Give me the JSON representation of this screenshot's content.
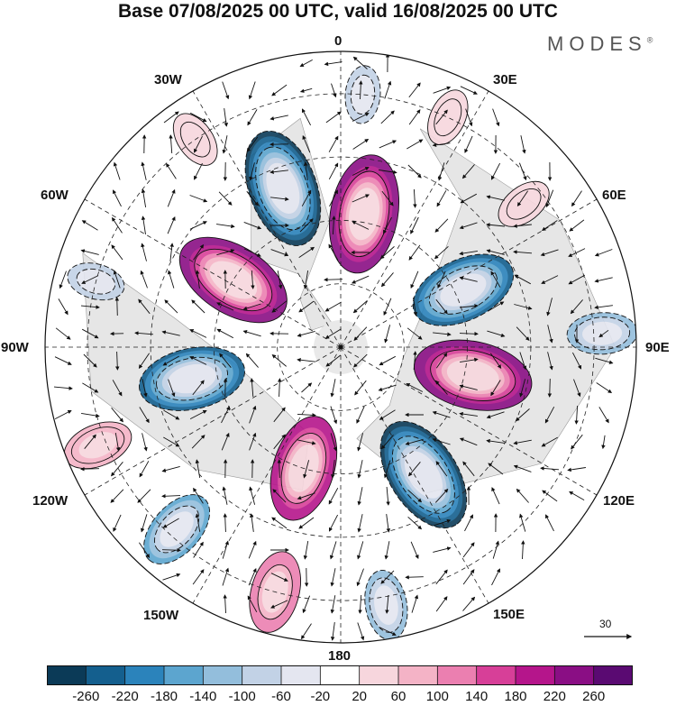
{
  "title": "Base 07/08/2025 00 UTC, valid 16/08/2025 00 UTC",
  "brand": "MODES",
  "brand_mark": "®",
  "longitude_labels": {
    "top": "0",
    "top_right": "30E",
    "right_upper": "60E",
    "right": "90E",
    "right_lower": "120E",
    "bottom_right": "150E",
    "bottom": "180",
    "bottom_left": "150W",
    "left_lower": "120W",
    "left": "90W",
    "left_upper": "60W",
    "top_left": "30W"
  },
  "reference_vector_label": "30",
  "colorbar": {
    "colors": [
      "#0b3a57",
      "#145f8e",
      "#2b83bb",
      "#5ca5cf",
      "#93bedc",
      "#c2d2e6",
      "#e4e6f0",
      "#ffffff",
      "#f7d6dd",
      "#f4b3c6",
      "#eb7fb0",
      "#d73f98",
      "#b5158b",
      "#8a0e84",
      "#5a0a72"
    ],
    "ticks": [
      "-260",
      "-220",
      "-180",
      "-140",
      "-100",
      "-60",
      "-20",
      "20",
      "60",
      "100",
      "140",
      "180",
      "220",
      "260"
    ]
  },
  "anomaly_centers": [
    {
      "lon": -20,
      "lat": 50,
      "value": -260
    },
    {
      "lon": 10,
      "lat": 58,
      "value": 260
    },
    {
      "lon": -58,
      "lat": 60,
      "value": 260
    },
    {
      "lon": 65,
      "lat": 58,
      "value": -220
    },
    {
      "lon": 102,
      "lat": 58,
      "value": 260
    },
    {
      "lon": 147,
      "lat": 54,
      "value": -260
    },
    {
      "lon": -163,
      "lat": 60,
      "value": 220
    },
    {
      "lon": -102,
      "lat": 54,
      "value": -220
    },
    {
      "lon": -138,
      "lat": 32,
      "value": -140
    },
    {
      "lon": -165,
      "lat": 30,
      "value": 140
    },
    {
      "lon": 170,
      "lat": 28,
      "value": -100
    },
    {
      "lon": -112,
      "lat": 28,
      "value": 100
    },
    {
      "lon": 87,
      "lat": 28,
      "value": -100
    },
    {
      "lon": 52,
      "lat": 35,
      "value": 60
    },
    {
      "lon": 25,
      "lat": 30,
      "value": 60
    },
    {
      "lon": -75,
      "lat": 30,
      "value": -60
    },
    {
      "lon": 5,
      "lat": 30,
      "value": -60
    },
    {
      "lon": -35,
      "lat": 30,
      "value": 60
    }
  ]
}
